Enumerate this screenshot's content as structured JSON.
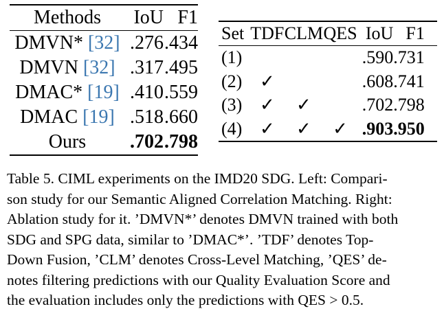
{
  "left_table": {
    "headers": [
      "Methods",
      "IoU",
      "F1"
    ],
    "rows": [
      {
        "name": "DMVN*",
        "cite": "[32]",
        "iou": ".276",
        "f1": ".434",
        "bold": false
      },
      {
        "name": "DMVN",
        "cite": "[32]",
        "iou": ".317",
        "f1": ".495",
        "bold": false
      },
      {
        "name": "DMAC*",
        "cite": "[19]",
        "iou": ".410",
        "f1": ".559",
        "bold": false
      },
      {
        "name": "DMAC",
        "cite": "[19]",
        "iou": ".518",
        "f1": ".660",
        "bold": false
      },
      {
        "name": "Ours",
        "cite": "",
        "iou": ".702",
        "f1": ".798",
        "bold": true
      }
    ]
  },
  "right_table": {
    "headers": [
      "Set",
      "TDF",
      "CLM",
      "QES",
      "IoU",
      "F1"
    ],
    "check_symbol": "✓",
    "rows": [
      {
        "set": "(1)",
        "tdf": "",
        "clm": "",
        "qes": "",
        "iou": ".590",
        "f1": ".731",
        "bold": false
      },
      {
        "set": "(2)",
        "tdf": "✓",
        "clm": "",
        "qes": "",
        "iou": ".608",
        "f1": ".741",
        "bold": false
      },
      {
        "set": "(3)",
        "tdf": "✓",
        "clm": "✓",
        "qes": "",
        "iou": ".702",
        "f1": ".798",
        "bold": false
      },
      {
        "set": "(4)",
        "tdf": "✓",
        "clm": "✓",
        "qes": "✓",
        "iou": ".903",
        "f1": ".950",
        "bold": true
      }
    ]
  },
  "caption": {
    "lines": [
      "Table 5. CIML experiments on the IMD20 SDG. Left: Compari-",
      "son study for our Semantic Aligned Correlation Matching. Right:",
      "Ablation study for it. ’DMVN*’ denotes DMVN trained with both",
      "SDG and SPG data, similar to ’DMAC*’.  ’TDF’ denotes Top-",
      "Down Fusion, ’CLM’ denotes Cross-Level Matching, ’QES’ de-",
      "notes filtering predictions with our Quality Evaluation Score and",
      "the evaluation includes only the predictions with QES > 0.5."
    ]
  },
  "colors": {
    "citation": "#3b77b0",
    "text": "#000000"
  }
}
